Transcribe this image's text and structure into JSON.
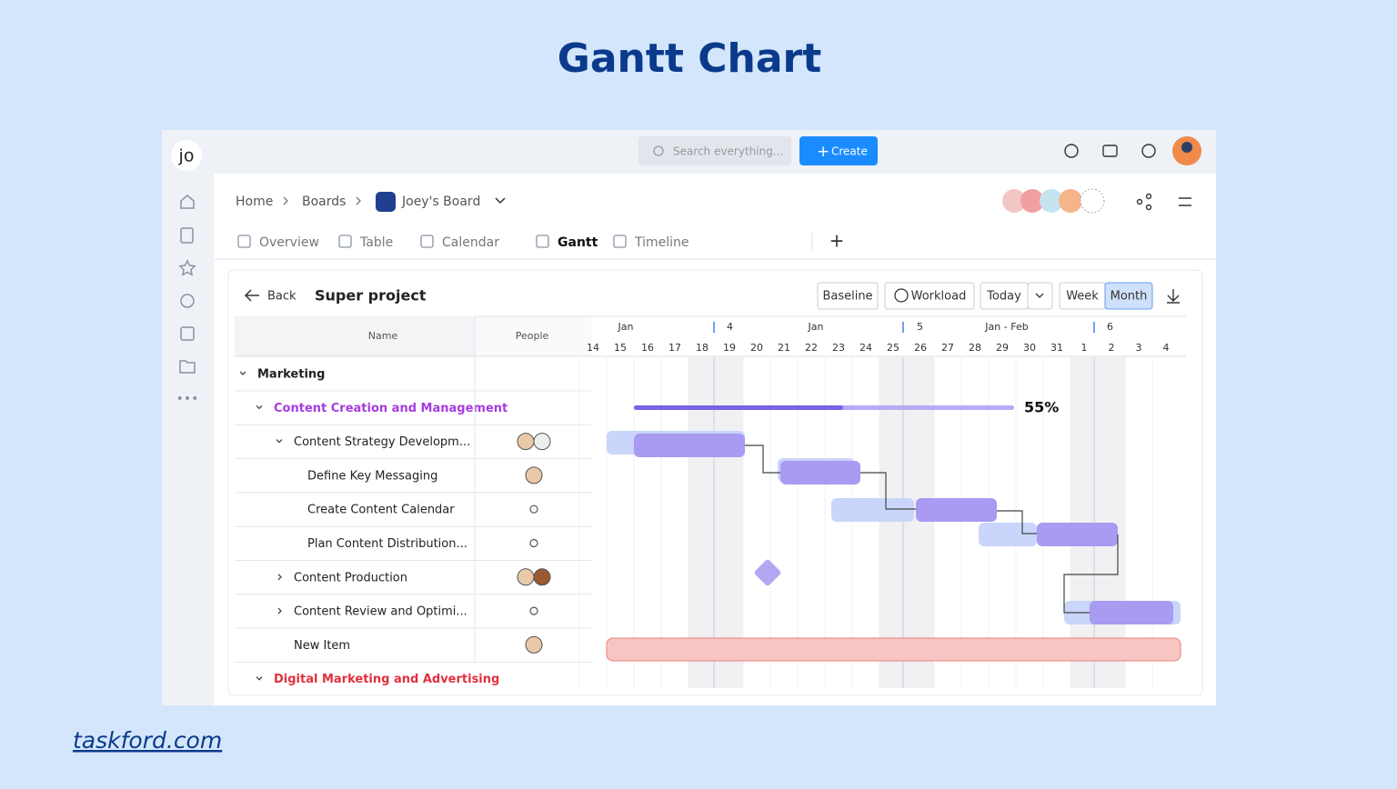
{
  "page": {
    "title": "Gantt Chart",
    "footer": "taskford.com"
  },
  "app": {
    "logo": "jo",
    "search": "Search everything...",
    "create": "Create"
  },
  "breadcrumb": [
    "Home",
    "Boards",
    "Joey's Board"
  ],
  "tabs": [
    "Overview",
    "Table",
    "Calendar",
    "Gantt",
    "Timeline"
  ],
  "toolbar": {
    "back": "Back",
    "project": "Super project",
    "buttons": [
      "Baseline",
      "Workload",
      "Today",
      "Week",
      "Month"
    ]
  },
  "table": {
    "headers": [
      "Name",
      "People"
    ],
    "rows": [
      "Marketing",
      "Content Creation and Management",
      "Content Strategy Developm...",
      "Define Key Messaging",
      "Create Content Calendar",
      "Plan Content Distribution...",
      "Content Production",
      "Content Review and Optimi...",
      "New Item",
      "Digital Marketing and Advertising"
    ]
  },
  "timeline": {
    "periods": [
      "Jan",
      4,
      "Jan",
      5,
      "Jan - Feb",
      6
    ],
    "days": [
      14,
      15,
      16,
      17,
      18,
      19,
      20,
      21,
      22,
      23,
      24,
      25,
      26,
      27,
      28,
      29,
      30,
      31,
      1,
      2,
      3,
      4
    ]
  },
  "progress": {
    "value": 55,
    "label": "55%"
  }
}
